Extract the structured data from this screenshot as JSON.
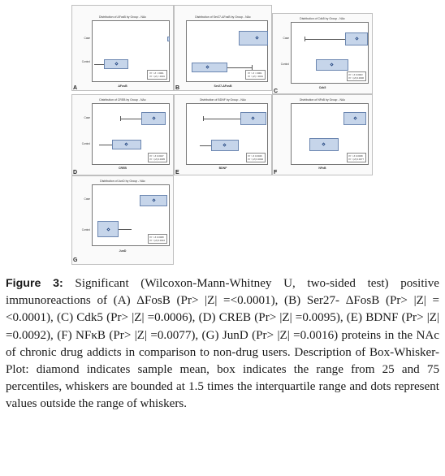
{
  "caption": {
    "label": "Figure 3:",
    "text": "Significant (Wilcoxon-Mann-Whitney U, two-sided test) positive immunoreactions of (A) ΔFosB (Pr> |Z| =<0.0001), (B) Ser27- ΔFosB (Pr> |Z| =<0.0001), (C) Cdk5 (Pr> |Z| =0.0006), (D) CREB (Pr> |Z| =0.0095), (E) BDNF (Pr> |Z| =0.0092), (F) NFκB (Pr> |Z| =0.0077), (G) JunD (Pr> |Z| =0.0016) proteins in the NAc of chronic drug addicts in comparison to non-drug users. Description of Box-Whisker-Plot: diamond indicates sample mean, box indicates the range from 25 and 75 percentiles, whiskers are bounded at 1.5 times the interquartile range and dots represent values outside the range of whiskers."
  },
  "panels": [
    {
      "letter": "A",
      "title": "Distribution of ΔFosB by Group - NAc",
      "xlabel": "ΔFosB",
      "groups": [
        "Case",
        "Control"
      ],
      "stats": [
        "Pr > Z  <.0001",
        "Pr > |Z| <.0001"
      ]
    },
    {
      "letter": "B",
      "title": "Distribution of Ser27-ΔFosB by Group - NAc",
      "xlabel": "Ser27-ΔFosB",
      "groups": [
        "Case",
        "Control"
      ],
      "stats": [
        "Pr > Z  <.0001",
        "Pr > |Z| <.0001"
      ]
    },
    {
      "letter": "C",
      "title": "Distribution of Cdk5 by Group - NAc",
      "xlabel": "Cdk5",
      "groups": [
        "Case",
        "Control"
      ],
      "stats": [
        "Pr > Z  0.0003",
        "Pr > |Z| 0.0006"
      ]
    },
    {
      "letter": "D",
      "title": "Distribution of CREB by Group - NAc",
      "xlabel": "CREB",
      "groups": [
        "Case",
        "Control"
      ],
      "stats": [
        "Pr > Z  0.0047",
        "Pr > |Z| 0.0095"
      ]
    },
    {
      "letter": "E",
      "title": "Distribution of BDNF by Group - NAc",
      "xlabel": "BDNF",
      "groups": [
        "Case",
        "Control"
      ],
      "stats": [
        "Pr > Z  0.0046",
        "Pr > |Z| 0.0092"
      ]
    },
    {
      "letter": "F",
      "title": "Distribution of NFκB by Group - NAc",
      "xlabel": "NFκB",
      "groups": [
        "Case",
        "Control"
      ],
      "stats": [
        "Pr > Z  0.0038",
        "Pr > |Z| 0.0077"
      ]
    },
    {
      "letter": "G",
      "title": "Distribution of JunD by Group - NAc",
      "xlabel": "JunD",
      "groups": [
        "Case",
        "Control"
      ],
      "stats": [
        "Pr > Z  0.0008",
        "Pr > |Z| 0.0016"
      ]
    }
  ],
  "colors": {
    "box_fill": "#c6d5ea",
    "box_edge": "#6b86b0",
    "panel_border": "#bfbfbf"
  }
}
